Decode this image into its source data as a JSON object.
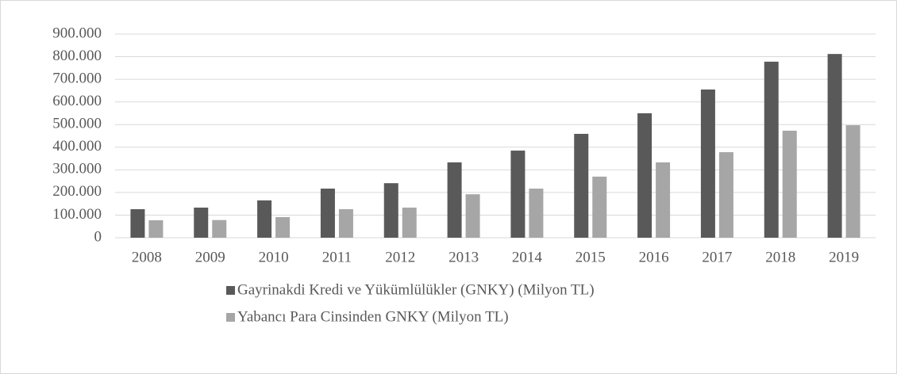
{
  "chart_data": {
    "type": "bar",
    "categories": [
      "2008",
      "2009",
      "2010",
      "2011",
      "2012",
      "2013",
      "2014",
      "2015",
      "2016",
      "2017",
      "2018",
      "2019"
    ],
    "series": [
      {
        "name": "Gayrinakdi Kredi ve Yükümlülükler (GNKY) (Milyon TL)",
        "color": "#595959",
        "values": [
          126000,
          133000,
          165000,
          217000,
          241000,
          333000,
          385000,
          459000,
          550000,
          655000,
          778000,
          812000
        ]
      },
      {
        "name": "Yabancı Para Cinsinden GNKY (Milyon TL)",
        "color": "#a6a6a6",
        "values": [
          77000,
          78000,
          91000,
          126000,
          133000,
          192000,
          217000,
          270000,
          333000,
          378000,
          473000,
          497000
        ]
      }
    ],
    "ylim": [
      0,
      900000
    ],
    "yticks": [
      0,
      {
        "value": 100000,
        "label": "100.000"
      },
      {
        "value": 200000,
        "label": "200.000"
      },
      {
        "value": 300000,
        "label": "300.000"
      },
      {
        "value": 400000,
        "label": "400.000"
      },
      {
        "value": 500000,
        "label": "500.000"
      },
      {
        "value": 600000,
        "label": "600.000"
      },
      {
        "value": 700000,
        "label": "700.000"
      },
      {
        "value": 800000,
        "label": "800.000"
      },
      {
        "value": 900000,
        "label": "900.000"
      }
    ],
    "grid": true,
    "legend": "bottom"
  }
}
